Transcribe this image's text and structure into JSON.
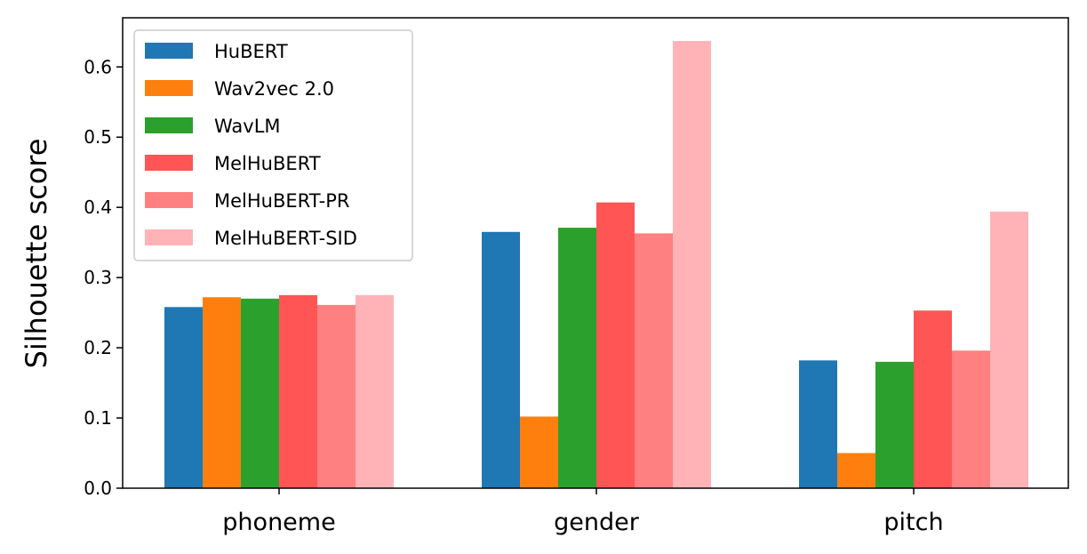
{
  "chart_data": {
    "type": "bar",
    "title": "",
    "xlabel": "",
    "ylabel": "Silhouette score",
    "categories": [
      "phoneme",
      "gender",
      "pitch"
    ],
    "ylim": [
      0,
      0.67
    ],
    "yticks": [
      0.0,
      0.1,
      0.2,
      0.3,
      0.4,
      0.5,
      0.6
    ],
    "ytick_labels": [
      "0.0",
      "0.1",
      "0.2",
      "0.3",
      "0.4",
      "0.5",
      "0.6"
    ],
    "grid": false,
    "legend_position": "top-left",
    "series": [
      {
        "name": "HuBERT",
        "color": "#1f77b4",
        "values": [
          0.258,
          0.365,
          0.182
        ]
      },
      {
        "name": "Wav2vec 2.0",
        "color": "#ff7f0e",
        "values": [
          0.272,
          0.102,
          0.05
        ]
      },
      {
        "name": "WavLM",
        "color": "#2ca02c",
        "values": [
          0.27,
          0.371,
          0.18
        ]
      },
      {
        "name": "MelHuBERT",
        "color": "#ff5555",
        "values": [
          0.275,
          0.407,
          0.253
        ]
      },
      {
        "name": "MelHuBERT-PR",
        "color": "#ff8080",
        "values": [
          0.261,
          0.363,
          0.196
        ]
      },
      {
        "name": "MelHuBERT-SID",
        "color": "#ffb3b6",
        "values": [
          0.275,
          0.637,
          0.394
        ]
      }
    ]
  }
}
